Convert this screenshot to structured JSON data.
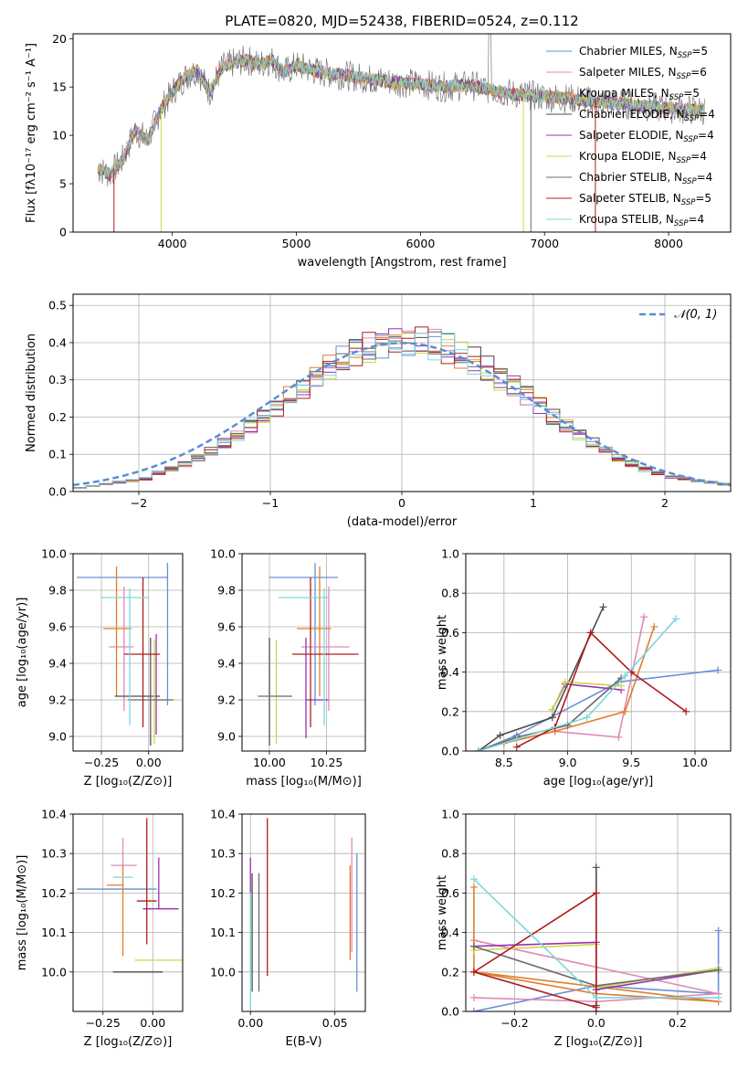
{
  "colors": {
    "Chabrier MILES": "#6a8fd6",
    "Salpeter MILES": "#e08ab8",
    "Kroupa MILES": "#e07e2a",
    "Chabrier ELODIE": "#4d4d4d",
    "Salpeter ELODIE": "#9b30b0",
    "Kroupa ELODIE": "#cbd84a",
    "Chabrier STELIB": "#6b6b6b",
    "Salpeter STELIB": "#b01c1c",
    "Kroupa STELIB": "#7ed6df"
  },
  "chart_data": [
    {
      "type": "line",
      "title": "PLATE=0820, MJD=52438, FIBERID=0524, z=0.112",
      "xlabel": "wavelength [Angstrom, rest frame]",
      "ylabel": "Flux [fλ10⁻¹⁷ erg cm⁻² s⁻¹ A⁻¹]",
      "xlim": [
        3200,
        8500
      ],
      "ylim": [
        0,
        20.5
      ],
      "xticks": [
        "4000",
        "5000",
        "6000",
        "7000",
        "8000"
      ],
      "yticks": [
        "0",
        "5",
        "10",
        "15",
        "20"
      ],
      "legend_position": "top-right",
      "legend": [
        {
          "name": "Chabrier MILES",
          "nssp": "5"
        },
        {
          "name": "Salpeter MILES",
          "nssp": "6"
        },
        {
          "name": "Kroupa MILES",
          "nssp": "5"
        },
        {
          "name": "Chabrier ELODIE",
          "nssp": "4"
        },
        {
          "name": "Salpeter ELODIE",
          "nssp": "4"
        },
        {
          "name": "Kroupa ELODIE",
          "nssp": "4"
        },
        {
          "name": "Chabrier STELIB",
          "nssp": "4"
        },
        {
          "name": "Salpeter STELIB",
          "nssp": "5"
        },
        {
          "name": "Kroupa STELIB",
          "nssp": "4"
        }
      ],
      "spectrum_x": [
        3400,
        3500,
        3600,
        3700,
        3800,
        3900,
        4000,
        4100,
        4200,
        4300,
        4400,
        4500,
        4600,
        4700,
        4800,
        4900,
        5000,
        5200,
        5400,
        5600,
        5800,
        6000,
        6200,
        6400,
        6600,
        6800,
        7000,
        7200,
        7400,
        7600,
        7800,
        8000,
        8200,
        8300
      ],
      "spectrum_y": [
        6.5,
        6.0,
        7.5,
        10.5,
        9.5,
        12.5,
        14.5,
        16.0,
        16.8,
        14.5,
        17.0,
        17.5,
        17.8,
        17.3,
        17.8,
        16.5,
        17.2,
        16.5,
        16.2,
        15.8,
        15.5,
        15.3,
        15.0,
        15.2,
        14.6,
        14.2,
        14.0,
        13.8,
        13.5,
        13.3,
        13.0,
        12.8,
        12.6,
        12.6
      ]
    },
    {
      "type": "line",
      "title": "",
      "xlabel": "(data-model)/error",
      "ylabel": "Normed distribution",
      "xlim": [
        -2.5,
        2.5
      ],
      "ylim": [
        0,
        0.53
      ],
      "xticks": [
        "−2",
        "−1",
        "0",
        "1",
        "2"
      ],
      "yticks": [
        "0.0",
        "0.1",
        "0.2",
        "0.3",
        "0.4",
        "0.5"
      ],
      "legend_position": "top-right",
      "legend_label": "𝒩(0, 1)",
      "hist_bin_width": 0.1,
      "hist_x_range": [
        -2.5,
        2.5
      ],
      "hist_y": [
        0.01,
        0.015,
        0.02,
        0.025,
        0.03,
        0.035,
        0.05,
        0.06,
        0.075,
        0.09,
        0.11,
        0.13,
        0.15,
        0.175,
        0.2,
        0.225,
        0.255,
        0.28,
        0.31,
        0.335,
        0.355,
        0.37,
        0.385,
        0.395,
        0.4,
        0.4,
        0.4,
        0.395,
        0.385,
        0.37,
        0.35,
        0.33,
        0.305,
        0.28,
        0.255,
        0.23,
        0.2,
        0.175,
        0.15,
        0.13,
        0.11,
        0.09,
        0.075,
        0.06,
        0.05,
        0.04,
        0.035,
        0.03,
        0.025,
        0.02
      ]
    },
    {
      "type": "scatter",
      "title": "",
      "xlabel": "Z [log₁₀(Z/Z⊙)]",
      "ylabel": "age  [log₁₀(age/yr)]",
      "xlim": [
        -0.4,
        0.18
      ],
      "ylim": [
        8.92,
        10.0
      ],
      "xticks": [
        "−0.25",
        "0.00"
      ],
      "yticks": [
        "9.0",
        "9.2",
        "9.4",
        "9.6",
        "9.8",
        "10.0"
      ],
      "series": [
        {
          "name": "Chabrier MILES",
          "x": 0.1,
          "y": 9.87,
          "xerr": [
            0.48,
            0.0
          ],
          "yerr": [
            0.7,
            0.08
          ]
        },
        {
          "name": "Salpeter MILES",
          "x": -0.13,
          "y": 9.49,
          "xerr": [
            0.08,
            0.05
          ],
          "yerr": [
            0.35,
            0.33
          ]
        },
        {
          "name": "Kroupa MILES",
          "x": -0.17,
          "y": 9.59,
          "xerr": [
            0.07,
            0.08
          ],
          "yerr": [
            0.37,
            0.34
          ]
        },
        {
          "name": "Chabrier ELODIE",
          "x": 0.01,
          "y": 9.22,
          "xerr": [
            0.19,
            0.05
          ],
          "yerr": [
            0.27,
            0.32
          ]
        },
        {
          "name": "Salpeter ELODIE",
          "x": 0.04,
          "y": 9.22,
          "xerr": [
            0.0,
            0.0
          ],
          "yerr": [
            0.21,
            0.34
          ]
        },
        {
          "name": "Kroupa ELODIE",
          "x": 0.03,
          "y": 9.2,
          "xerr": [
            0.0,
            0.12
          ],
          "yerr": [
            0.24,
            0.33
          ]
        },
        {
          "name": "Chabrier STELIB",
          "x": 0.01,
          "y": 9.2,
          "xerr": [
            0.12,
            0.12
          ],
          "yerr": [
            0.21,
            0.31
          ]
        },
        {
          "name": "Salpeter STELIB",
          "x": -0.03,
          "y": 9.45,
          "xerr": [
            0.1,
            0.09
          ],
          "yerr": [
            0.4,
            0.42
          ]
        },
        {
          "name": "Kroupa STELIB",
          "x": -0.1,
          "y": 9.76,
          "xerr": [
            0.15,
            0.1
          ],
          "yerr": [
            0.7,
            0.05
          ]
        }
      ]
    },
    {
      "type": "scatter",
      "title": "",
      "xlabel": "mass [log₁₀(M/M⊙)]",
      "ylabel": "",
      "xlim": [
        9.88,
        10.42
      ],
      "ylim": [
        8.92,
        10.0
      ],
      "xticks": [
        "10.00",
        "10.25"
      ],
      "yticks": [
        "9.0",
        "9.2",
        "9.4",
        "9.6",
        "9.8",
        "10.0"
      ],
      "series": [
        {
          "name": "Chabrier MILES",
          "x": 10.2,
          "y": 9.87,
          "xerr": [
            0.2,
            0.1
          ],
          "yerr": [
            0.7,
            0.08
          ]
        },
        {
          "name": "Salpeter MILES",
          "x": 10.26,
          "y": 9.49,
          "xerr": [
            0.12,
            0.09
          ],
          "yerr": [
            0.35,
            0.33
          ]
        },
        {
          "name": "Kroupa MILES",
          "x": 10.22,
          "y": 9.59,
          "xerr": [
            0.1,
            0.05
          ],
          "yerr": [
            0.37,
            0.34
          ]
        },
        {
          "name": "Chabrier ELODIE",
          "x": 10.0,
          "y": 9.22,
          "xerr": [
            0.0,
            0.0
          ],
          "yerr": [
            0.27,
            0.32
          ]
        },
        {
          "name": "Salpeter ELODIE",
          "x": 10.16,
          "y": 9.2,
          "xerr": [
            0.0,
            0.1
          ],
          "yerr": [
            0.21,
            0.34
          ]
        },
        {
          "name": "Kroupa ELODIE",
          "x": 10.03,
          "y": 9.2,
          "xerr": [
            0.0,
            0.0
          ],
          "yerr": [
            0.24,
            0.33
          ]
        },
        {
          "name": "Chabrier STELIB",
          "x": 10.0,
          "y": 9.22,
          "xerr": [
            0.05,
            0.1
          ],
          "yerr": [
            0.27,
            0.32
          ]
        },
        {
          "name": "Salpeter STELIB",
          "x": 10.18,
          "y": 9.45,
          "xerr": [
            0.08,
            0.21
          ],
          "yerr": [
            0.4,
            0.42
          ]
        },
        {
          "name": "Kroupa STELIB",
          "x": 10.24,
          "y": 9.76,
          "xerr": [
            0.2,
            0.02
          ],
          "yerr": [
            0.7,
            0.05
          ]
        }
      ]
    },
    {
      "type": "line",
      "title": "",
      "xlabel": "age  [log₁₀(age/yr)]",
      "ylabel": "mass weight",
      "xlim": [
        8.2,
        10.28
      ],
      "ylim": [
        0,
        1.0
      ],
      "xticks": [
        "8.5",
        "9.0",
        "9.5",
        "10.0"
      ],
      "yticks": [
        "0.0",
        "0.2",
        "0.4",
        "0.6",
        "0.8",
        "1.0"
      ],
      "series": [
        {
          "name": "Chabrier MILES",
          "x": [
            8.3,
            8.6,
            9.4,
            10.18
          ],
          "y": [
            0.0,
            0.08,
            0.35,
            0.41
          ]
        },
        {
          "name": "Salpeter MILES",
          "x": [
            8.5,
            8.9,
            9.4,
            9.6
          ],
          "y": [
            0.04,
            0.1,
            0.07,
            0.68
          ]
        },
        {
          "name": "Kroupa MILES",
          "x": [
            8.5,
            8.9,
            9.45,
            9.68
          ],
          "y": [
            0.04,
            0.1,
            0.2,
            0.63
          ]
        },
        {
          "name": "Chabrier ELODIE",
          "x": [
            8.3,
            8.47,
            8.88,
            9.28
          ],
          "y": [
            0.0,
            0.08,
            0.17,
            0.73
          ]
        },
        {
          "name": "Salpeter ELODIE",
          "x": [
            8.88,
            8.98,
            9.42
          ],
          "y": [
            0.21,
            0.34,
            0.31
          ]
        },
        {
          "name": "Kroupa ELODIE",
          "x": [
            8.88,
            8.98,
            9.42
          ],
          "y": [
            0.21,
            0.35,
            0.33
          ]
        },
        {
          "name": "Chabrier STELIB",
          "x": [
            8.3,
            8.6,
            9.0,
            9.42
          ],
          "y": [
            0.0,
            0.07,
            0.13,
            0.37
          ]
        },
        {
          "name": "Salpeter STELIB",
          "x": [
            8.6,
            8.9,
            9.18,
            9.5,
            9.93
          ],
          "y": [
            0.02,
            0.12,
            0.6,
            0.4,
            0.2
          ]
        },
        {
          "name": "Kroupa STELIB",
          "x": [
            8.3,
            8.6,
            9.15,
            9.45,
            9.85
          ],
          "y": [
            0.0,
            0.06,
            0.17,
            0.38,
            0.67
          ]
        }
      ]
    },
    {
      "type": "scatter",
      "title": "",
      "xlabel": "Z [log₁₀(Z/Z⊙)]",
      "ylabel": "mass [log₁₀(M/M⊙)]",
      "xlim": [
        -0.4,
        0.15
      ],
      "ylim": [
        9.9,
        10.4
      ],
      "xticks": [
        "−0.25",
        "0.00"
      ],
      "yticks": [
        "10.0",
        "10.1",
        "10.2",
        "10.3",
        "10.4"
      ],
      "series": [
        {
          "name": "Chabrier MILES",
          "x": -0.1,
          "y": 10.21,
          "xerr": [
            0.28,
            0.12
          ],
          "yerr": [
            0.0,
            0.0
          ]
        },
        {
          "name": "Salpeter MILES",
          "x": -0.15,
          "y": 10.27,
          "xerr": [
            0.06,
            0.07
          ],
          "yerr": [
            0.0,
            0.07
          ]
        },
        {
          "name": "Kroupa MILES",
          "x": -0.15,
          "y": 10.22,
          "xerr": [
            0.08,
            0.0
          ],
          "yerr": [
            0.18,
            0.05
          ]
        },
        {
          "name": "Chabrier ELODIE",
          "x": -0.05,
          "y": 10.0,
          "xerr": [
            0.15,
            0.1
          ],
          "yerr": [
            0.0,
            0.0
          ]
        },
        {
          "name": "Salpeter ELODIE",
          "x": 0.03,
          "y": 10.16,
          "xerr": [
            0.08,
            0.1
          ],
          "yerr": [
            0.0,
            0.13
          ]
        },
        {
          "name": "Kroupa ELODIE",
          "x": 0.03,
          "y": 10.03,
          "xerr": [
            0.12,
            0.12
          ],
          "yerr": [
            0.0,
            0.0
          ]
        },
        {
          "name": "Chabrier STELIB",
          "x": 0.0,
          "y": 10.0,
          "xerr": [
            0.0,
            0.0
          ],
          "yerr": [
            0.0,
            0.0
          ]
        },
        {
          "name": "Salpeter STELIB",
          "x": -0.03,
          "y": 10.18,
          "xerr": [
            0.05,
            0.05
          ],
          "yerr": [
            0.11,
            0.21
          ]
        },
        {
          "name": "Kroupa STELIB",
          "x": -0.1,
          "y": 10.24,
          "xerr": [
            0.1,
            0.0
          ],
          "yerr": [
            0.0,
            0.0
          ]
        }
      ]
    },
    {
      "type": "scatter",
      "title": "",
      "xlabel": "E(B-V)",
      "ylabel": "",
      "xlim": [
        -0.005,
        0.068
      ],
      "ylim": [
        9.9,
        10.4
      ],
      "xticks": [
        "0.00",
        "0.05"
      ],
      "yticks": [
        "10.0",
        "10.1",
        "10.2",
        "10.3",
        "10.4"
      ],
      "series": [
        {
          "name": "Chabrier MILES",
          "x": 0.063,
          "y": 10.2,
          "yerr": [
            0.25,
            0.1
          ]
        },
        {
          "name": "Salpeter MILES",
          "x": 0.06,
          "y": 10.2,
          "yerr": [
            0.15,
            0.14
          ]
        },
        {
          "name": "Kroupa MILES",
          "x": 0.059,
          "y": 10.15,
          "yerr": [
            0.12,
            0.12
          ]
        },
        {
          "name": "Chabrier ELODIE",
          "x": 0.001,
          "y": 10.1,
          "yerr": [
            0.15,
            0.15
          ]
        },
        {
          "name": "Salpeter ELODIE",
          "x": 0.0,
          "y": 10.2,
          "yerr": [
            0.2,
            0.09
          ]
        },
        {
          "name": "Kroupa ELODIE",
          "x": 0.0,
          "y": 10.1,
          "yerr": [
            0.1,
            0.1
          ]
        },
        {
          "name": "Chabrier STELIB",
          "x": 0.005,
          "y": 10.1,
          "yerr": [
            0.15,
            0.15
          ]
        },
        {
          "name": "Salpeter STELIB",
          "x": 0.01,
          "y": 10.2,
          "yerr": [
            0.21,
            0.19
          ]
        },
        {
          "name": "Kroupa STELIB",
          "x": 0.0,
          "y": 10.1,
          "yerr": [
            0.2,
            0.1
          ]
        }
      ]
    },
    {
      "type": "line",
      "title": "",
      "xlabel": "Z [log₁₀(Z/Z⊙)]",
      "ylabel": "mass weight",
      "xlim": [
        -0.32,
        0.33
      ],
      "ylim": [
        0,
        1.0
      ],
      "xticks": [
        "−0.2",
        "0.0",
        "0.2"
      ],
      "yticks": [
        "0.0",
        "0.2",
        "0.4",
        "0.6",
        "0.8",
        "1.0"
      ],
      "series": [
        {
          "name": "Chabrier MILES",
          "x": [
            -0.3,
            0.0,
            0.3,
            0.3
          ],
          "y": [
            0.0,
            0.13,
            0.09,
            0.41
          ]
        },
        {
          "name": "Salpeter MILES",
          "x": [
            -0.3,
            0.0,
            0.3,
            -0.3
          ],
          "y": [
            0.07,
            0.05,
            0.09,
            0.36
          ]
        },
        {
          "name": "Kroupa MILES",
          "x": [
            -0.3,
            0.0,
            0.3,
            -0.3,
            -0.3
          ],
          "y": [
            0.2,
            0.09,
            0.05,
            0.2,
            0.63
          ]
        },
        {
          "name": "Chabrier ELODIE",
          "x": [
            0.0,
            0.0
          ],
          "y": [
            0.03,
            0.73
          ]
        },
        {
          "name": "Salpeter ELODIE",
          "x": [
            -0.3,
            0.0,
            0.0,
            0.3
          ],
          "y": [
            0.33,
            0.35,
            0.11,
            0.21
          ]
        },
        {
          "name": "Kroupa ELODIE",
          "x": [
            -0.3,
            0.0,
            0.0,
            0.3
          ],
          "y": [
            0.31,
            0.34,
            0.12,
            0.22
          ]
        },
        {
          "name": "Chabrier STELIB",
          "x": [
            -0.3,
            0.0,
            0.3
          ],
          "y": [
            0.33,
            0.13,
            0.21
          ]
        },
        {
          "name": "Salpeter STELIB",
          "x": [
            0.0,
            -0.3,
            0.0,
            0.0
          ],
          "y": [
            0.02,
            0.2,
            0.6,
            0.0
          ]
        },
        {
          "name": "Kroupa STELIB",
          "x": [
            -0.3,
            0.0,
            0.3
          ],
          "y": [
            0.67,
            0.07,
            0.07
          ]
        }
      ]
    }
  ]
}
